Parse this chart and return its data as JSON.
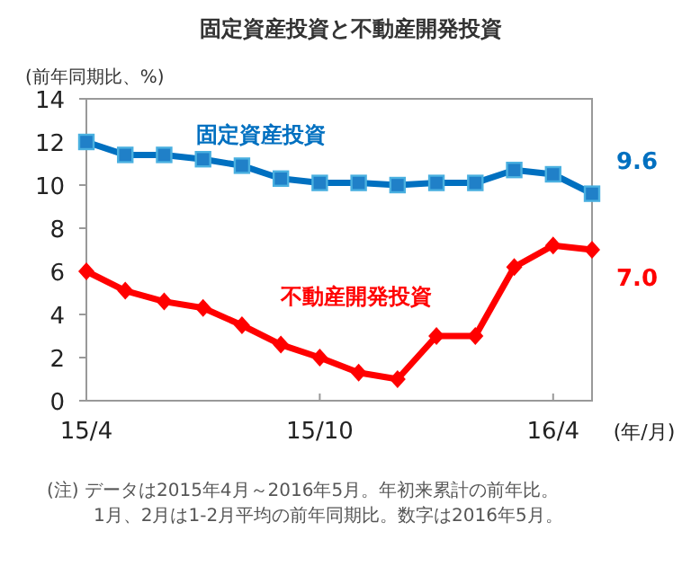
{
  "chart_data": {
    "type": "line",
    "title": "固定資産投資と不動産開発投資",
    "ylabel": "(前年同期比、%)",
    "xlabel": "(年/月)",
    "categories": [
      "15/4",
      null,
      null,
      null,
      null,
      null,
      "15/10",
      null,
      null,
      null,
      null,
      null,
      "16/4",
      null
    ],
    "ylim": [
      0,
      14
    ],
    "yticks": [
      0,
      2,
      4,
      6,
      8,
      10,
      12,
      14
    ],
    "grid": false,
    "series": [
      {
        "name": "固定資産投資",
        "color": "#0070c0",
        "marker": "square",
        "values": [
          12.0,
          11.4,
          11.4,
          11.2,
          10.9,
          10.3,
          10.1,
          10.1,
          10.0,
          10.1,
          10.1,
          10.7,
          10.5,
          9.6
        ],
        "value_labels": [
          null,
          null,
          null,
          null,
          null,
          null,
          null,
          null,
          null,
          null,
          null,
          null,
          null,
          "9.6"
        ]
      },
      {
        "name": "不動産開発投資",
        "color": "#ff0000",
        "marker": "diamond",
        "values": [
          6.0,
          5.1,
          4.6,
          4.3,
          3.5,
          2.6,
          2.0,
          1.3,
          1.0,
          3.0,
          3.0,
          6.2,
          7.2,
          7.0
        ],
        "value_labels": [
          null,
          null,
          null,
          null,
          null,
          null,
          null,
          null,
          null,
          null,
          null,
          null,
          null,
          "7.0"
        ]
      }
    ],
    "annotations": [
      "(注) データは2015年4月～2016年5月。年初来累計の前年比。",
      "1月、2月は1-2月平均の前年同期比。数字は2016年5月。"
    ]
  }
}
